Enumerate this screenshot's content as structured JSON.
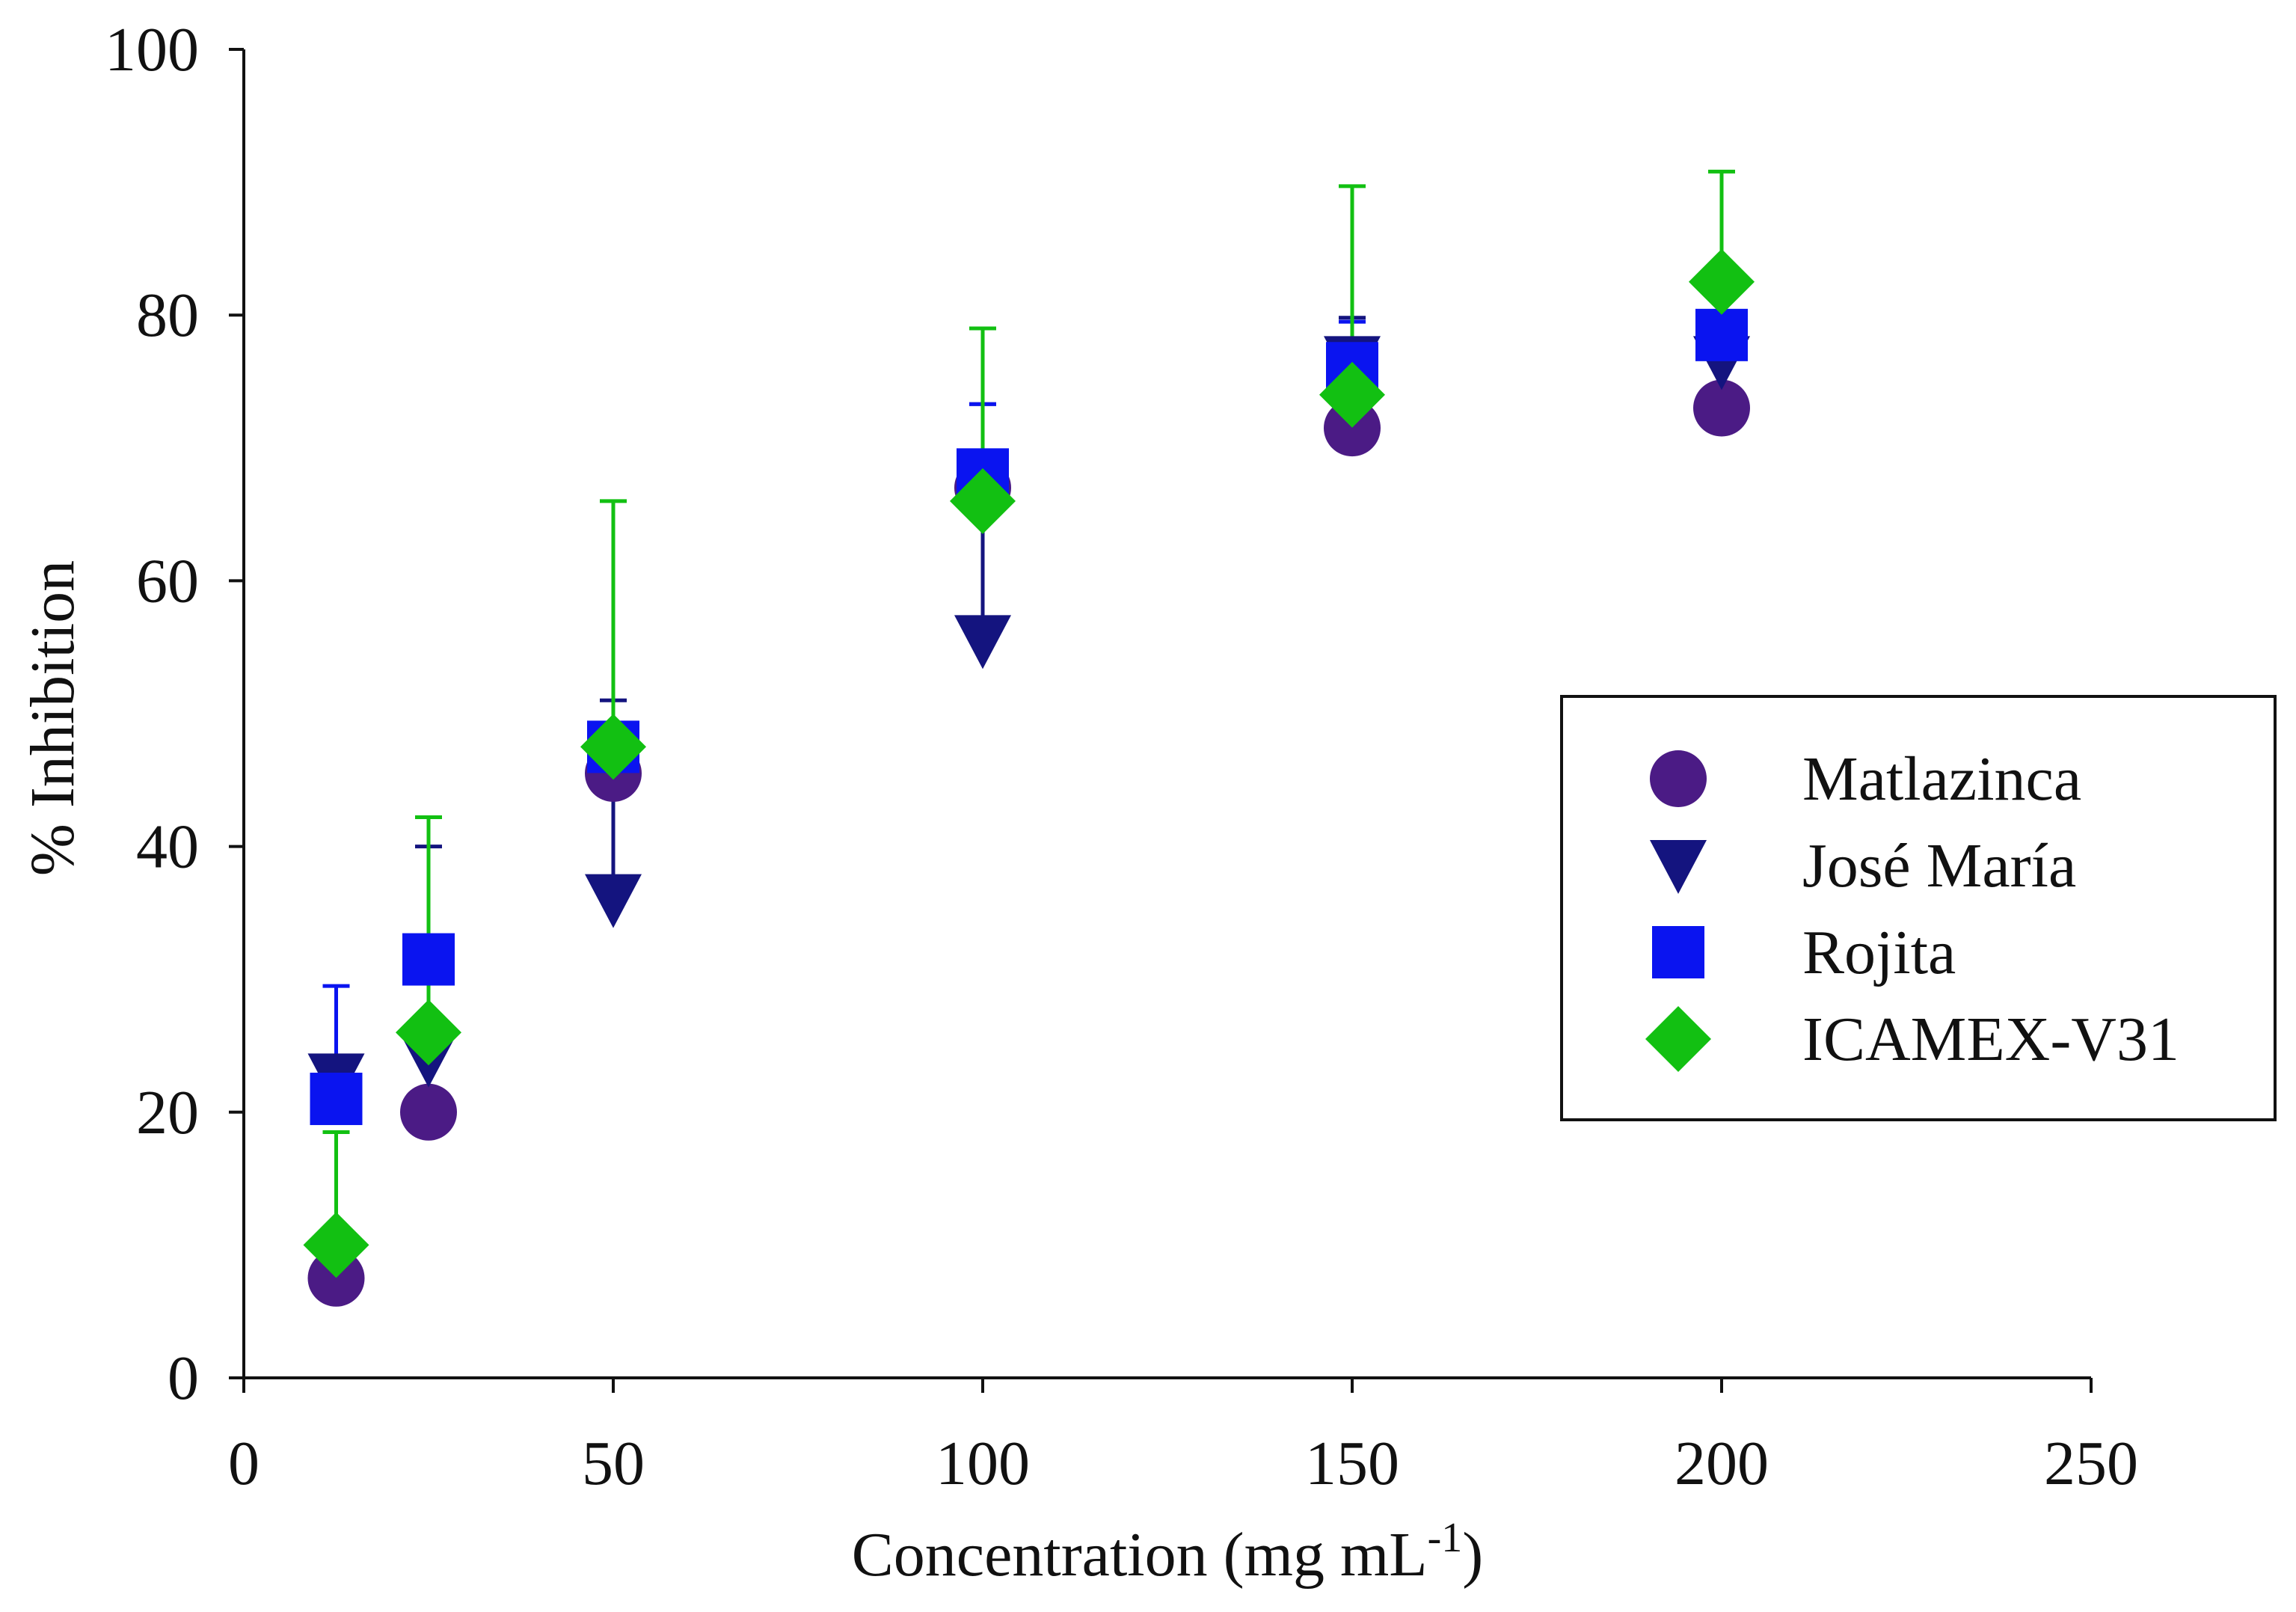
{
  "chart_data": {
    "type": "scatter",
    "title": "",
    "xlabel": "Concentration (mg mL",
    "xlabel_superscript": "-1",
    "xlabel_suffix": ")",
    "ylabel": "% Inhibition",
    "xlim": [
      0,
      250
    ],
    "ylim": [
      0,
      100
    ],
    "xticks": [
      "0",
      "50",
      "100",
      "150",
      "200",
      "250"
    ],
    "yticks": [
      "0",
      "20",
      "40",
      "60",
      "80",
      "100"
    ],
    "grid": false,
    "legend_position": "right",
    "series": [
      {
        "name": "Matlazinca",
        "marker": "circle",
        "color": "#4B1B85",
        "points": [
          {
            "x": 12.5,
            "y": 7.5,
            "err": 0
          },
          {
            "x": 25,
            "y": 20,
            "err": 0
          },
          {
            "x": 50,
            "y": 45.5,
            "err": 0
          },
          {
            "x": 100,
            "y": 67,
            "err": 0
          },
          {
            "x": 150,
            "y": 71.5,
            "err": 0
          },
          {
            "x": 200,
            "y": 73,
            "err": 0
          }
        ]
      },
      {
        "name": "José María",
        "marker": "triangle-down",
        "color": "#14147F",
        "points": [
          {
            "x": 12.5,
            "y": 22.5,
            "err": 0
          },
          {
            "x": 25,
            "y": 24,
            "err": 16
          },
          {
            "x": 50,
            "y": 36,
            "err": 15
          },
          {
            "x": 100,
            "y": 55.5,
            "err": 17.8
          },
          {
            "x": 150,
            "y": 76.5,
            "err": 3.3
          },
          {
            "x": 200,
            "y": 76.5,
            "err": 0
          }
        ]
      },
      {
        "name": "Rojita",
        "marker": "square",
        "color": "#0A14F0",
        "points": [
          {
            "x": 12.5,
            "y": 21,
            "err": 8.5
          },
          {
            "x": 25,
            "y": 31.5,
            "err": 0
          },
          {
            "x": 50,
            "y": 47.5,
            "err": 0
          },
          {
            "x": 100,
            "y": 68,
            "err": 5.3
          },
          {
            "x": 150,
            "y": 76,
            "err": 3.5
          },
          {
            "x": 200,
            "y": 78.5,
            "err": 0
          }
        ]
      },
      {
        "name": "ICAMEX-V31",
        "marker": "diamond",
        "color": "#12C012",
        "points": [
          {
            "x": 12.5,
            "y": 10,
            "err": 8.5
          },
          {
            "x": 25,
            "y": 26,
            "err": 16.2
          },
          {
            "x": 50,
            "y": 47.5,
            "err": 18.5
          },
          {
            "x": 100,
            "y": 66,
            "err": 13
          },
          {
            "x": 150,
            "y": 74,
            "err": 15.7
          },
          {
            "x": 200,
            "y": 82.5,
            "err": 8.3
          }
        ]
      }
    ]
  }
}
